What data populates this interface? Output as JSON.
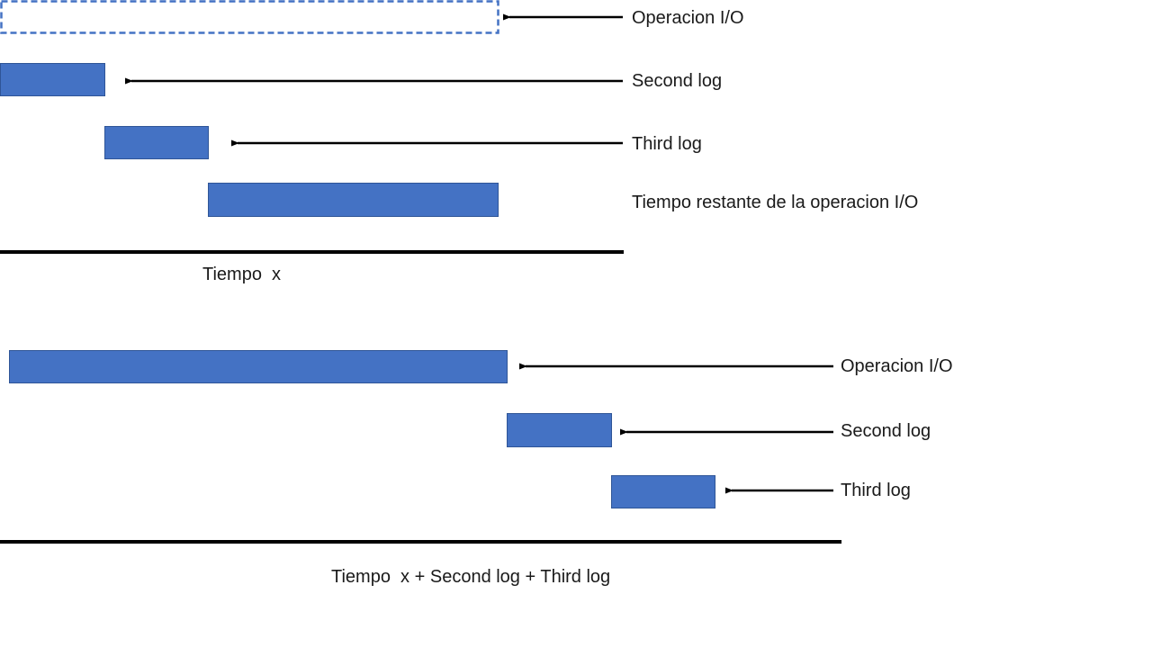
{
  "colors": {
    "bar_fill": "#4472C4",
    "bar_stroke": "#2F5597",
    "line": "#000000",
    "text": "#1a1a1a"
  },
  "top": {
    "operacion_label": "Operacion I/O",
    "second_label": "Second log",
    "third_label": "Third log",
    "remaining_label": "Tiempo restante de la operacion I/O",
    "axis_label": "Tiempo  x"
  },
  "bottom": {
    "operacion_label": "Operacion I/O",
    "second_label": "Second log",
    "third_label": "Third log",
    "axis_label": "Tiempo  x + Second log + Third log"
  }
}
